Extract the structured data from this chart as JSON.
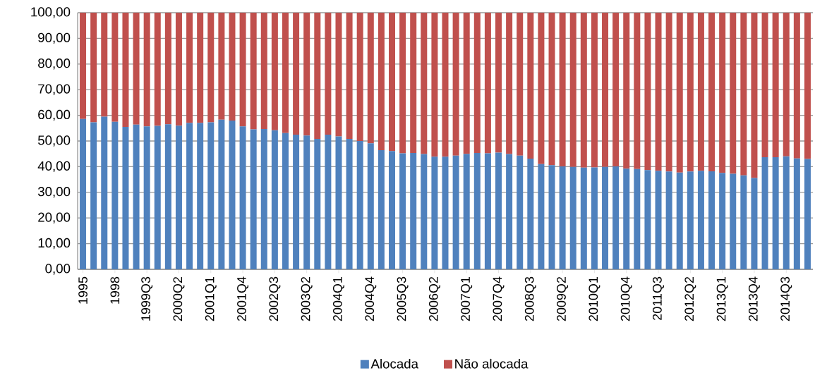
{
  "chart_data": {
    "type": "bar",
    "stacked": true,
    "grid": "y",
    "legend": "bottom",
    "categories": [
      "1995",
      null,
      null,
      "1998",
      null,
      null,
      "1999Q3",
      null,
      null,
      "2000Q2",
      null,
      null,
      "2001Q1",
      null,
      null,
      "2001Q4",
      null,
      null,
      "2002Q3",
      null,
      null,
      "2003Q2",
      null,
      null,
      "2004Q1",
      null,
      null,
      "2004Q4",
      null,
      null,
      "2005Q3",
      null,
      null,
      "2006Q2",
      null,
      null,
      "2007Q1",
      null,
      null,
      "2007Q4",
      null,
      null,
      "2008Q3",
      null,
      null,
      "2009Q2",
      null,
      null,
      "2010Q1",
      null,
      null,
      "2010Q4",
      null,
      null,
      "2011Q3",
      null,
      null,
      "2012Q2",
      null,
      null,
      "2013Q1",
      null,
      null,
      "2013Q4",
      null,
      null,
      "2014Q3",
      null,
      null
    ],
    "ylim": [
      0,
      100
    ],
    "yticks": [
      {
        "value": 0,
        "label": "0,00"
      },
      {
        "value": 10,
        "label": "10,00"
      },
      {
        "value": 20,
        "label": "20,00"
      },
      {
        "value": 30,
        "label": "30,00"
      },
      {
        "value": 40,
        "label": "40,00"
      },
      {
        "value": 50,
        "label": "50,00"
      },
      {
        "value": 60,
        "label": "60,00"
      },
      {
        "value": 70,
        "label": "70,00"
      },
      {
        "value": 80,
        "label": "80,00"
      },
      {
        "value": 90,
        "label": "90,00"
      },
      {
        "value": 100,
        "label": "100,00"
      }
    ],
    "series": [
      {
        "name": "Alocada",
        "color": "#4f81bd",
        "values": [
          58.6,
          57.3,
          59.5,
          57.5,
          55.5,
          56.4,
          55.7,
          55.9,
          56.5,
          56.0,
          57.1,
          57.1,
          57.3,
          58.3,
          58.0,
          55.7,
          54.5,
          54.7,
          54.2,
          53.1,
          52.5,
          52.1,
          50.8,
          52.5,
          51.8,
          50.8,
          50.0,
          49.1,
          46.4,
          46.1,
          45.2,
          45.3,
          44.9,
          43.9,
          43.9,
          44.3,
          45.0,
          45.3,
          45.2,
          45.5,
          44.9,
          44.3,
          43.1,
          41.0,
          40.6,
          40.1,
          39.9,
          39.6,
          39.7,
          39.9,
          40.1,
          39.2,
          39.1,
          38.7,
          38.4,
          38.1,
          37.7,
          38.1,
          38.4,
          38.2,
          37.6,
          37.2,
          36.6,
          35.6,
          43.7,
          43.7,
          44.0,
          43.2,
          43.0
        ]
      },
      {
        "name": "Não alocada",
        "color": "#c0504d",
        "values": [
          41.4,
          42.7,
          40.5,
          42.5,
          44.5,
          43.6,
          44.3,
          44.1,
          43.5,
          44.0,
          42.9,
          42.9,
          42.7,
          41.7,
          42.0,
          44.3,
          45.5,
          45.3,
          45.8,
          46.9,
          47.5,
          47.9,
          49.2,
          47.5,
          48.2,
          49.2,
          50.0,
          50.9,
          53.6,
          53.9,
          54.8,
          54.7,
          55.1,
          56.1,
          56.1,
          55.7,
          55.0,
          54.7,
          54.8,
          54.5,
          55.1,
          55.7,
          56.9,
          59.0,
          59.4,
          59.9,
          60.1,
          60.4,
          60.3,
          60.1,
          59.9,
          60.8,
          60.9,
          61.3,
          61.6,
          61.9,
          62.3,
          61.9,
          61.6,
          61.8,
          62.4,
          62.8,
          63.4,
          64.4,
          56.3,
          56.3,
          56.0,
          56.8,
          57.0
        ]
      }
    ]
  }
}
